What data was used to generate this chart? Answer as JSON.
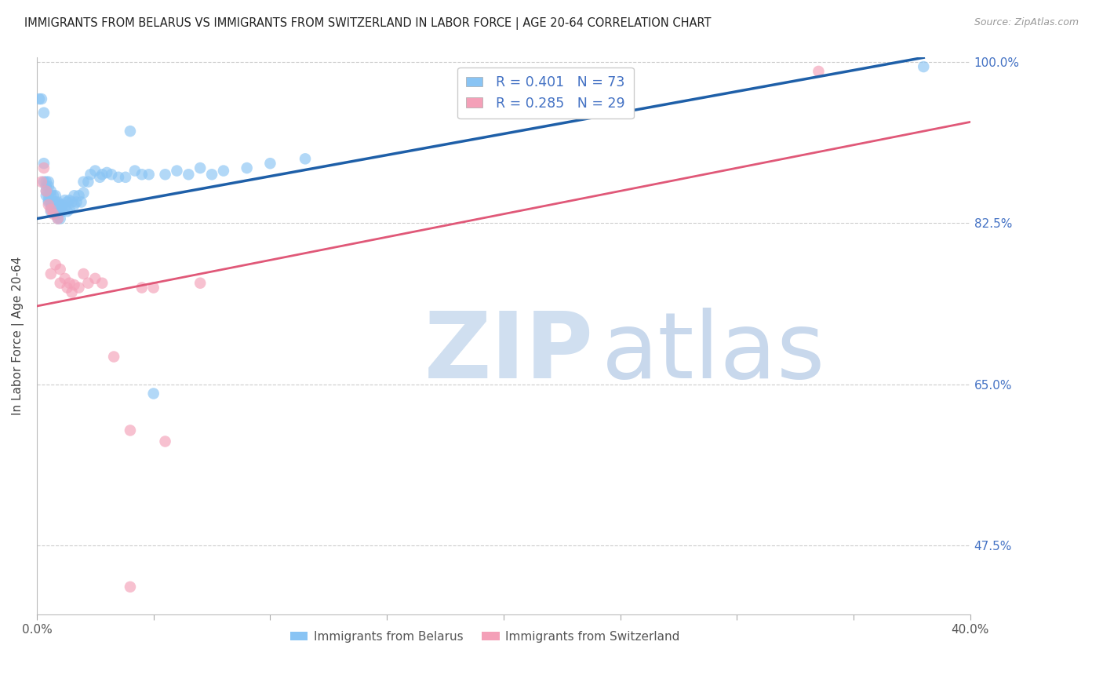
{
  "title": "IMMIGRANTS FROM BELARUS VS IMMIGRANTS FROM SWITZERLAND IN LABOR FORCE | AGE 20-64 CORRELATION CHART",
  "source": "Source: ZipAtlas.com",
  "ylabel": "In Labor Force | Age 20-64",
  "xlim": [
    0.0,
    0.4
  ],
  "ylim": [
    0.4,
    1.005
  ],
  "ytick_vals": [
    0.475,
    0.65,
    0.825,
    1.0
  ],
  "ytick_labels": [
    "47.5%",
    "65.0%",
    "82.5%",
    "100.0%"
  ],
  "xtick_vals": [
    0.0,
    0.05,
    0.1,
    0.15,
    0.2,
    0.25,
    0.3,
    0.35,
    0.4
  ],
  "xtick_labels": [
    "0.0%",
    "",
    "",
    "",
    "",
    "",
    "",
    "",
    "40.0%"
  ],
  "belarus_color": "#89C4F4",
  "switzerland_color": "#F4A0B8",
  "belarus_line_color": "#1E5FA8",
  "switzerland_line_color": "#E05878",
  "legend_R_belarus": "R = 0.401",
  "legend_N_belarus": "N = 73",
  "legend_R_switzerland": "R = 0.285",
  "legend_N_switzerland": "N = 29",
  "belarus_line": [
    0.0,
    0.83,
    0.38,
    1.005
  ],
  "switzerland_line": [
    0.0,
    0.735,
    0.4,
    0.935
  ],
  "belarus_points": [
    [
      0.001,
      0.96
    ],
    [
      0.002,
      0.96
    ],
    [
      0.003,
      0.945
    ],
    [
      0.003,
      0.89
    ],
    [
      0.003,
      0.87
    ],
    [
      0.004,
      0.87
    ],
    [
      0.004,
      0.865
    ],
    [
      0.004,
      0.86
    ],
    [
      0.004,
      0.855
    ],
    [
      0.005,
      0.87
    ],
    [
      0.005,
      0.865
    ],
    [
      0.005,
      0.855
    ],
    [
      0.005,
      0.85
    ],
    [
      0.005,
      0.848
    ],
    [
      0.006,
      0.86
    ],
    [
      0.006,
      0.855
    ],
    [
      0.006,
      0.848
    ],
    [
      0.006,
      0.842
    ],
    [
      0.006,
      0.838
    ],
    [
      0.007,
      0.855
    ],
    [
      0.007,
      0.848
    ],
    [
      0.007,
      0.842
    ],
    [
      0.008,
      0.855
    ],
    [
      0.008,
      0.848
    ],
    [
      0.008,
      0.84
    ],
    [
      0.008,
      0.835
    ],
    [
      0.009,
      0.848
    ],
    [
      0.009,
      0.84
    ],
    [
      0.009,
      0.835
    ],
    [
      0.009,
      0.83
    ],
    [
      0.01,
      0.845
    ],
    [
      0.01,
      0.838
    ],
    [
      0.01,
      0.83
    ],
    [
      0.011,
      0.845
    ],
    [
      0.011,
      0.838
    ],
    [
      0.012,
      0.85
    ],
    [
      0.012,
      0.842
    ],
    [
      0.013,
      0.848
    ],
    [
      0.013,
      0.838
    ],
    [
      0.014,
      0.85
    ],
    [
      0.014,
      0.84
    ],
    [
      0.015,
      0.848
    ],
    [
      0.016,
      0.855
    ],
    [
      0.016,
      0.845
    ],
    [
      0.017,
      0.848
    ],
    [
      0.018,
      0.855
    ],
    [
      0.019,
      0.848
    ],
    [
      0.02,
      0.87
    ],
    [
      0.02,
      0.858
    ],
    [
      0.022,
      0.87
    ],
    [
      0.023,
      0.878
    ],
    [
      0.025,
      0.882
    ],
    [
      0.027,
      0.875
    ],
    [
      0.028,
      0.878
    ],
    [
      0.03,
      0.88
    ],
    [
      0.032,
      0.878
    ],
    [
      0.035,
      0.875
    ],
    [
      0.038,
      0.875
    ],
    [
      0.04,
      0.925
    ],
    [
      0.042,
      0.882
    ],
    [
      0.045,
      0.878
    ],
    [
      0.048,
      0.878
    ],
    [
      0.05,
      0.64
    ],
    [
      0.055,
      0.878
    ],
    [
      0.06,
      0.882
    ],
    [
      0.065,
      0.878
    ],
    [
      0.07,
      0.885
    ],
    [
      0.075,
      0.878
    ],
    [
      0.08,
      0.882
    ],
    [
      0.09,
      0.885
    ],
    [
      0.1,
      0.89
    ],
    [
      0.115,
      0.895
    ],
    [
      0.38,
      0.995
    ]
  ],
  "switzerland_points": [
    [
      0.002,
      0.87
    ],
    [
      0.003,
      0.885
    ],
    [
      0.004,
      0.86
    ],
    [
      0.005,
      0.845
    ],
    [
      0.006,
      0.84
    ],
    [
      0.006,
      0.77
    ],
    [
      0.007,
      0.835
    ],
    [
      0.008,
      0.78
    ],
    [
      0.009,
      0.83
    ],
    [
      0.01,
      0.775
    ],
    [
      0.01,
      0.76
    ],
    [
      0.012,
      0.765
    ],
    [
      0.013,
      0.755
    ],
    [
      0.014,
      0.76
    ],
    [
      0.015,
      0.75
    ],
    [
      0.016,
      0.758
    ],
    [
      0.018,
      0.755
    ],
    [
      0.02,
      0.77
    ],
    [
      0.022,
      0.76
    ],
    [
      0.025,
      0.765
    ],
    [
      0.028,
      0.76
    ],
    [
      0.033,
      0.68
    ],
    [
      0.04,
      0.6
    ],
    [
      0.045,
      0.755
    ],
    [
      0.05,
      0.755
    ],
    [
      0.055,
      0.588
    ],
    [
      0.07,
      0.76
    ],
    [
      0.04,
      0.43
    ],
    [
      0.335,
      0.99
    ]
  ]
}
